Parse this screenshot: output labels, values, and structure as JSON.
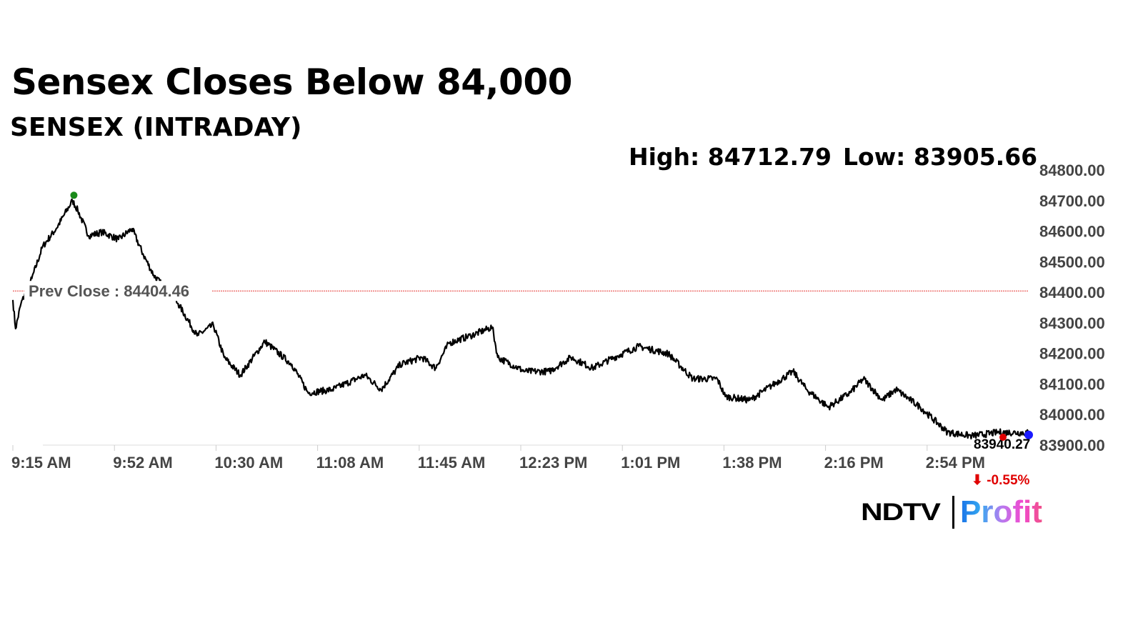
{
  "title": "Sensex Closes Below 84,000",
  "subtitle": "SENSEX (INTRADAY)",
  "high_label": "High: 84712.79",
  "low_label": "Low: 83905.66",
  "logo": {
    "part1": "NDTV",
    "part2": "Profit"
  },
  "colors": {
    "line": "#000000",
    "prev_close": "#e53935",
    "high_dot": "#1a8a1a",
    "last_dot": "#1a1aff",
    "change": "#e00000"
  },
  "chart_data": {
    "type": "line",
    "title": "SENSEX (INTRADAY)",
    "ylim": [
      83900,
      84800
    ],
    "yticks": [
      "84800.00",
      "84700.00",
      "84600.00",
      "84500.00",
      "84400.00",
      "84300.00",
      "84200.00",
      "84100.00",
      "84000.00",
      "83900.00"
    ],
    "ytick_values": [
      84800,
      84700,
      84600,
      84500,
      84400,
      84300,
      84200,
      84100,
      84000,
      83900
    ],
    "xticks": [
      "9:15 AM",
      "9:52 AM",
      "10:30 AM",
      "11:08 AM",
      "11:45 AM",
      "12:23 PM",
      "1:01 PM",
      "1:38 PM",
      "2:16 PM",
      "2:54 PM"
    ],
    "xtick_minutes": [
      0,
      37.5,
      75,
      112.5,
      150,
      187.5,
      225,
      262.5,
      300,
      337.5
    ],
    "xlim_minutes_since_open": [
      0,
      375
    ],
    "prev_close": 84404.46,
    "prev_close_label": "Prev Close : 84404.46",
    "high": {
      "t": 22,
      "value": 84712.79
    },
    "last": {
      "t": 375,
      "value": 83940.27,
      "label": "83940.27",
      "change": "-0.55%"
    },
    "series": [
      {
        "t": [
          0,
          1,
          3,
          7,
          11,
          16,
          22,
          24,
          28,
          33,
          39,
          44,
          48,
          52,
          61,
          68,
          74,
          78,
          84,
          93,
          103,
          109,
          118,
          130,
          136,
          143,
          151,
          156,
          161,
          169,
          177,
          179,
          189,
          198,
          206,
          214,
          222,
          231,
          242,
          251,
          260,
          263,
          272,
          280,
          288,
          293,
          301,
          309,
          314,
          321,
          326,
          335,
          345,
          354,
          364,
          375
        ],
        "values": [
          84375,
          84281,
          84363,
          84445,
          84550,
          84608,
          84700,
          84667,
          84585,
          84597,
          84573,
          84608,
          84526,
          84456,
          84363,
          84258,
          84293,
          84187,
          84129,
          84239,
          84164,
          84071,
          84082,
          84129,
          84082,
          84164,
          84187,
          84152,
          84234,
          84258,
          84286,
          84187,
          84141,
          84141,
          84187,
          84152,
          84187,
          84223,
          84199,
          84117,
          84117,
          84059,
          84047,
          84094,
          84141,
          84082,
          84024,
          84071,
          84117,
          84047,
          84082,
          84024,
          83942,
          83930,
          83942,
          83940
        ]
      }
    ],
    "grid": false
  }
}
